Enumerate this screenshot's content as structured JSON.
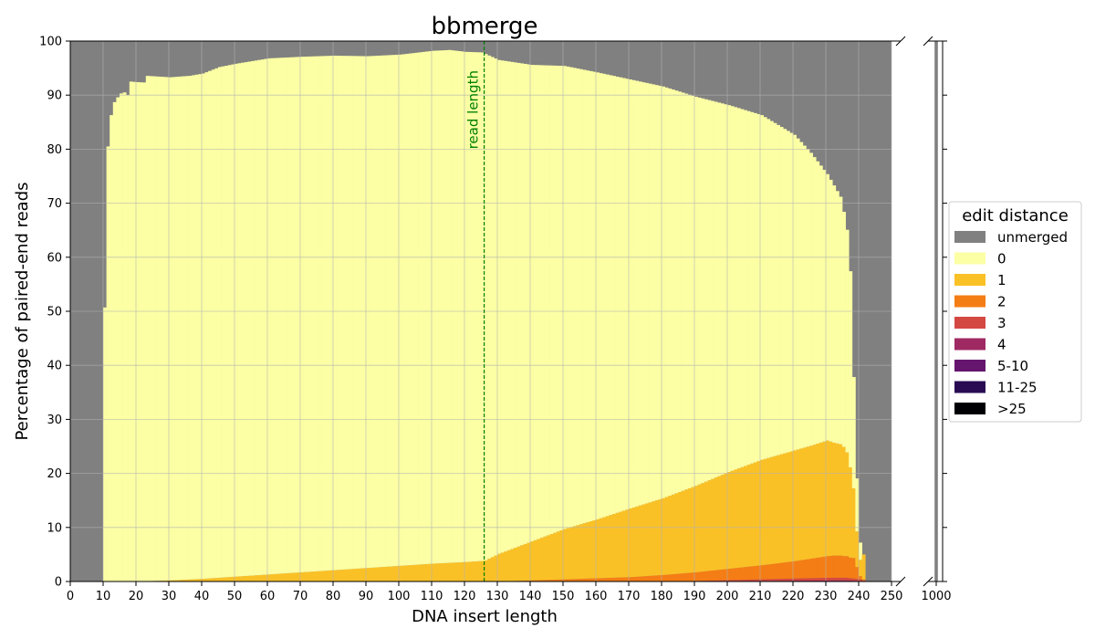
{
  "chart_data": {
    "type": "bar",
    "stacked": true,
    "title": "bbmerge",
    "xlabel": "DNA insert length",
    "ylabel": "Percentage of paired-end reads",
    "xlim": [
      0,
      250
    ],
    "ylim": [
      0,
      100
    ],
    "xticks": [
      "0",
      "10",
      "20",
      "30",
      "40",
      "50",
      "60",
      "70",
      "80",
      "90",
      "100",
      "110",
      "120",
      "130",
      "140",
      "150",
      "160",
      "170",
      "180",
      "190",
      "200",
      "210",
      "220",
      "230",
      "240",
      "250"
    ],
    "yticks": [
      "0",
      "10",
      "20",
      "30",
      "40",
      "50",
      "60",
      "70",
      "80",
      "90",
      "100"
    ],
    "broken_axis_tick": "1000",
    "broken_axis_value": {
      "x": 1000,
      "unmerged": 100
    },
    "grid": true,
    "annotation": {
      "text": "read length",
      "x": 126,
      "color": "#008000"
    },
    "legend": {
      "title": "edit distance",
      "position": "right",
      "entries": [
        {
          "label": "unmerged",
          "color": "#808080"
        },
        {
          "label": "0",
          "color": "#fcffa4"
        },
        {
          "label": "1",
          "color": "#fac127"
        },
        {
          "label": "2",
          "color": "#f57d15"
        },
        {
          "label": "3",
          "color": "#d44842"
        },
        {
          "label": "4",
          "color": "#9f2a63"
        },
        {
          "label": "5-10",
          "color": "#65156e"
        },
        {
          "label": "11-25",
          "color": "#280b53"
        },
        {
          "label": ">25",
          "color": "#000004"
        }
      ]
    },
    "x_range": [
      10,
      242
    ],
    "series": [
      {
        "name": "0",
        "anchors": [
          [
            10,
            50.7
          ],
          [
            11,
            80.5
          ],
          [
            12,
            86.3
          ],
          [
            13,
            88.7
          ],
          [
            14,
            89.6
          ],
          [
            15,
            90.3
          ],
          [
            16,
            90.5
          ],
          [
            17,
            90.0
          ],
          [
            18,
            92.5
          ],
          [
            22,
            92.3
          ],
          [
            23,
            93.5
          ],
          [
            30,
            93.1
          ],
          [
            36,
            93.2
          ],
          [
            40,
            93.5
          ],
          [
            45,
            94.5
          ],
          [
            50,
            94.9
          ],
          [
            60,
            95.5
          ],
          [
            70,
            95.4
          ],
          [
            80,
            95.2
          ],
          [
            90,
            94.7
          ],
          [
            100,
            94.6
          ],
          [
            110,
            94.9
          ],
          [
            115,
            94.9
          ],
          [
            120,
            94.4
          ],
          [
            125,
            94.1
          ],
          [
            126,
            93.7
          ],
          [
            130,
            91.4
          ],
          [
            140,
            88.2
          ],
          [
            150,
            85.7
          ],
          [
            160,
            82.7
          ],
          [
            170,
            79.4
          ],
          [
            180,
            76.2
          ],
          [
            190,
            72.0
          ],
          [
            200,
            67.9
          ],
          [
            210,
            63.8
          ],
          [
            220,
            58.4
          ],
          [
            225,
            54.2
          ],
          [
            230,
            49.3
          ],
          [
            232,
            47.6
          ],
          [
            234,
            45.8
          ],
          [
            235,
            43.5
          ],
          [
            236,
            41.2
          ],
          [
            237,
            36.3
          ],
          [
            238,
            20.6
          ],
          [
            239,
            9.8
          ],
          [
            240,
            3.2
          ],
          [
            241,
            0.0
          ],
          [
            242,
            0.0
          ]
        ]
      },
      {
        "name": "1",
        "anchors": [
          [
            10,
            0.0
          ],
          [
            20,
            0.0
          ],
          [
            30,
            0.2
          ],
          [
            40,
            0.5
          ],
          [
            50,
            0.9
          ],
          [
            60,
            1.3
          ],
          [
            70,
            1.7
          ],
          [
            80,
            2.1
          ],
          [
            90,
            2.5
          ],
          [
            100,
            2.9
          ],
          [
            110,
            3.3
          ],
          [
            120,
            3.6
          ],
          [
            125,
            3.8
          ],
          [
            126,
            3.9
          ],
          [
            130,
            5.1
          ],
          [
            140,
            7.2
          ],
          [
            150,
            9.3
          ],
          [
            160,
            10.9
          ],
          [
            170,
            12.7
          ],
          [
            180,
            14.2
          ],
          [
            190,
            16.0
          ],
          [
            200,
            17.9
          ],
          [
            210,
            19.5
          ],
          [
            220,
            20.5
          ],
          [
            225,
            20.9
          ],
          [
            230,
            21.4
          ],
          [
            232,
            20.9
          ],
          [
            234,
            20.6
          ],
          [
            235,
            20.2
          ],
          [
            236,
            19.2
          ],
          [
            237,
            16.7
          ],
          [
            238,
            12.9
          ],
          [
            239,
            6.6
          ],
          [
            240,
            3.0
          ],
          [
            241,
            4.6
          ],
          [
            242,
            0.0
          ]
        ]
      },
      {
        "name": "2",
        "anchors": [
          [
            10,
            0.0
          ],
          [
            130,
            0.0
          ],
          [
            140,
            0.2
          ],
          [
            150,
            0.4
          ],
          [
            160,
            0.6
          ],
          [
            170,
            0.8
          ],
          [
            180,
            1.2
          ],
          [
            190,
            1.6
          ],
          [
            200,
            2.1
          ],
          [
            210,
            2.6
          ],
          [
            220,
            3.2
          ],
          [
            225,
            3.6
          ],
          [
            230,
            4.0
          ],
          [
            232,
            4.1
          ],
          [
            234,
            4.1
          ],
          [
            235,
            4.0
          ],
          [
            236,
            4.0
          ],
          [
            237,
            3.8
          ],
          [
            238,
            3.8
          ],
          [
            239,
            2.2
          ],
          [
            240,
            0.6
          ],
          [
            241,
            0.2
          ],
          [
            242,
            0.0
          ]
        ]
      },
      {
        "name": "3",
        "anchors": [
          [
            10,
            0.0
          ],
          [
            180,
            0.0
          ],
          [
            190,
            0.1
          ],
          [
            200,
            0.2
          ],
          [
            210,
            0.3
          ],
          [
            220,
            0.4
          ],
          [
            230,
            0.5
          ],
          [
            236,
            0.5
          ],
          [
            240,
            0.3
          ],
          [
            242,
            0.0
          ]
        ]
      },
      {
        "name": "4",
        "anchors": [
          [
            10,
            0.0
          ],
          [
            190,
            0.0
          ],
          [
            200,
            0.05
          ],
          [
            220,
            0.15
          ],
          [
            235,
            0.2
          ],
          [
            240,
            0.1
          ],
          [
            242,
            0.0
          ]
        ]
      },
      {
        "name": "5-10",
        "anchors": [
          [
            10,
            0.0
          ],
          [
            242,
            0.0
          ]
        ]
      },
      {
        "name": "11-25",
        "anchors": [
          [
            10,
            0.0
          ],
          [
            242,
            0.0
          ]
        ]
      },
      {
        "name": ">25",
        "anchors": [
          [
            10,
            0.0
          ],
          [
            242,
            0.0
          ]
        ]
      }
    ]
  }
}
